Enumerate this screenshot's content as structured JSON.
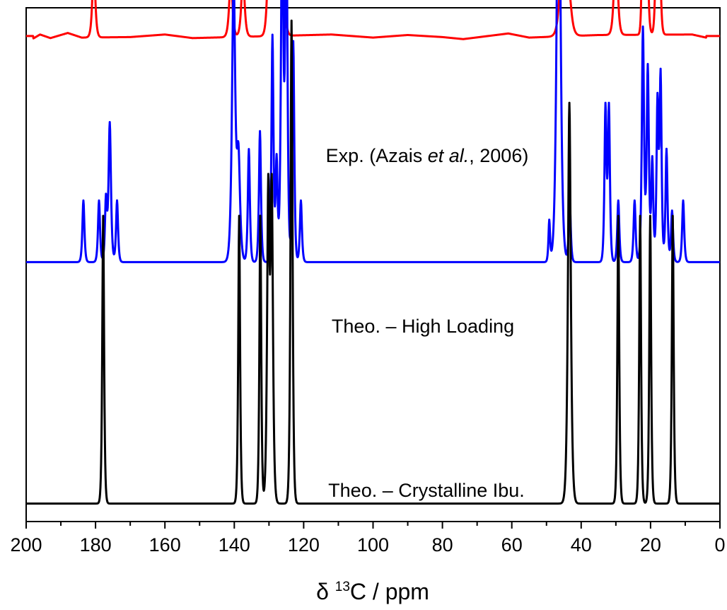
{
  "chart_data": {
    "type": "line",
    "xlabel": {
      "prefix": "δ ",
      "sup": "13",
      "suffix": "C / ppm"
    },
    "xlim": [
      200,
      0
    ],
    "x_ticks": [
      200,
      180,
      160,
      140,
      120,
      100,
      80,
      60,
      40,
      20,
      0
    ],
    "x_tick_labels": [
      "200",
      "180",
      "160",
      "140",
      "120",
      "100",
      "80",
      "60",
      "40",
      "20",
      "0"
    ],
    "x_minor_step": 10,
    "y_axis": "hidden",
    "grid": false,
    "note": "",
    "series": [
      {
        "name": "Exp. (Azais et al., 2006)",
        "color": "#ff0000",
        "baseline": 0.945,
        "noise": [
          [
            198,
            -0.005
          ],
          [
            196,
            0.003
          ],
          [
            193,
            -0.004
          ],
          [
            188,
            0.006
          ],
          [
            184,
            -0.003
          ],
          [
            170,
            -0.002
          ],
          [
            160,
            0.003
          ],
          [
            152,
            -0.004
          ],
          [
            112,
            0.003
          ],
          [
            100,
            -0.003
          ],
          [
            90,
            0.002
          ],
          [
            80,
            -0.002
          ],
          [
            74,
            -0.006
          ],
          [
            61,
            0.005
          ],
          [
            55,
            -0.003
          ],
          [
            35,
            0.002
          ],
          [
            8,
            0.003
          ],
          [
            4,
            -0.003
          ]
        ],
        "peaks": [
          {
            "pos": 180.5,
            "height": 0.145,
            "width": 0.7
          },
          {
            "pos": 141.0,
            "height": 0.115,
            "width": 0.8
          },
          {
            "pos": 137.5,
            "height": 0.12,
            "width": 0.8
          },
          {
            "pos": 130.0,
            "height": 0.18,
            "width": 0.8
          },
          {
            "pos": 128.5,
            "height": 0.13,
            "width": 0.8
          },
          {
            "pos": 127.0,
            "height": 0.19,
            "width": 0.8
          },
          {
            "pos": 125.8,
            "height": 0.1,
            "width": 0.8
          },
          {
            "pos": 45.5,
            "height": 0.155,
            "width": 1.2
          },
          {
            "pos": 43.5,
            "height": 0.08,
            "width": 1.2
          },
          {
            "pos": 30.0,
            "height": 0.205,
            "width": 0.8
          },
          {
            "pos": 22.0,
            "height": 0.78,
            "width": 0.45
          },
          {
            "pos": 21.2,
            "height": 0.35,
            "width": 0.6
          },
          {
            "pos": 18.2,
            "height": 0.28,
            "width": 0.55
          },
          {
            "pos": 17.4,
            "height": 0.18,
            "width": 0.55
          }
        ]
      },
      {
        "name": "Theo. – High Loading",
        "color": "#0000ff",
        "baseline": 0.505,
        "noise": [],
        "peaks": [
          {
            "pos": 183.5,
            "height": 0.12,
            "width": 0.5
          },
          {
            "pos": 179.0,
            "height": 0.12,
            "width": 0.5
          },
          {
            "pos": 177.0,
            "height": 0.12,
            "width": 0.5
          },
          {
            "pos": 175.9,
            "height": 0.27,
            "width": 0.6
          },
          {
            "pos": 173.8,
            "height": 0.12,
            "width": 0.5
          },
          {
            "pos": 140.2,
            "height": 0.545,
            "width": 0.8
          },
          {
            "pos": 138.8,
            "height": 0.2,
            "width": 0.8
          },
          {
            "pos": 135.8,
            "height": 0.22,
            "width": 0.5
          },
          {
            "pos": 132.6,
            "height": 0.255,
            "width": 0.5
          },
          {
            "pos": 129.0,
            "height": 0.44,
            "width": 0.5
          },
          {
            "pos": 127.8,
            "height": 0.2,
            "width": 0.5
          },
          {
            "pos": 126.2,
            "height": 0.695,
            "width": 0.6
          },
          {
            "pos": 125.0,
            "height": 0.72,
            "width": 0.55
          },
          {
            "pos": 123.0,
            "height": 0.43,
            "width": 0.5
          },
          {
            "pos": 120.8,
            "height": 0.12,
            "width": 0.5
          },
          {
            "pos": 49.2,
            "height": 0.08,
            "width": 0.4
          },
          {
            "pos": 46.5,
            "height": 0.93,
            "width": 0.9
          },
          {
            "pos": 43.3,
            "height": 0.12,
            "width": 0.5
          },
          {
            "pos": 33.0,
            "height": 0.3,
            "width": 0.5
          },
          {
            "pos": 32.0,
            "height": 0.3,
            "width": 0.5
          },
          {
            "pos": 29.3,
            "height": 0.12,
            "width": 0.5
          },
          {
            "pos": 24.6,
            "height": 0.12,
            "width": 0.5
          },
          {
            "pos": 22.2,
            "height": 0.455,
            "width": 0.55
          },
          {
            "pos": 20.8,
            "height": 0.38,
            "width": 0.55
          },
          {
            "pos": 19.5,
            "height": 0.2,
            "width": 0.5
          },
          {
            "pos": 18.0,
            "height": 0.31,
            "width": 0.5
          },
          {
            "pos": 17.1,
            "height": 0.36,
            "width": 0.5
          },
          {
            "pos": 15.4,
            "height": 0.22,
            "width": 0.5
          },
          {
            "pos": 13.8,
            "height": 0.1,
            "width": 0.5
          },
          {
            "pos": 10.6,
            "height": 0.12,
            "width": 0.5
          }
        ]
      },
      {
        "name": "Theo. – Crystalline Ibu.",
        "color": "#000000",
        "baseline": 0.035,
        "noise": [],
        "peaks": [
          {
            "pos": 177.8,
            "height": 0.56,
            "width": 0.45
          },
          {
            "pos": 138.6,
            "height": 0.56,
            "width": 0.45
          },
          {
            "pos": 132.5,
            "height": 0.56,
            "width": 0.45
          },
          {
            "pos": 130.2,
            "height": 0.6,
            "width": 0.6
          },
          {
            "pos": 129.2,
            "height": 0.6,
            "width": 0.6
          },
          {
            "pos": 123.5,
            "height": 0.94,
            "width": 0.5
          },
          {
            "pos": 43.4,
            "height": 0.78,
            "width": 0.7
          },
          {
            "pos": 29.3,
            "height": 0.56,
            "width": 0.45
          },
          {
            "pos": 23.0,
            "height": 0.56,
            "width": 0.45
          },
          {
            "pos": 20.1,
            "height": 0.56,
            "width": 0.45
          },
          {
            "pos": 13.6,
            "height": 0.56,
            "width": 0.45
          }
        ]
      }
    ],
    "annotations": [
      {
        "series": 0,
        "parts": [
          {
            "text": "Exp. (Azais ",
            "italic": false
          },
          {
            "text": "et al.",
            "italic": true
          },
          {
            "text": ", 2006)",
            "italic": false
          }
        ]
      },
      {
        "series": 1,
        "parts": [
          {
            "text": "Theo. – High Loading",
            "italic": false
          }
        ]
      },
      {
        "series": 2,
        "parts": [
          {
            "text": "Theo. – Crystalline Ibu.",
            "italic": false
          }
        ]
      }
    ]
  }
}
